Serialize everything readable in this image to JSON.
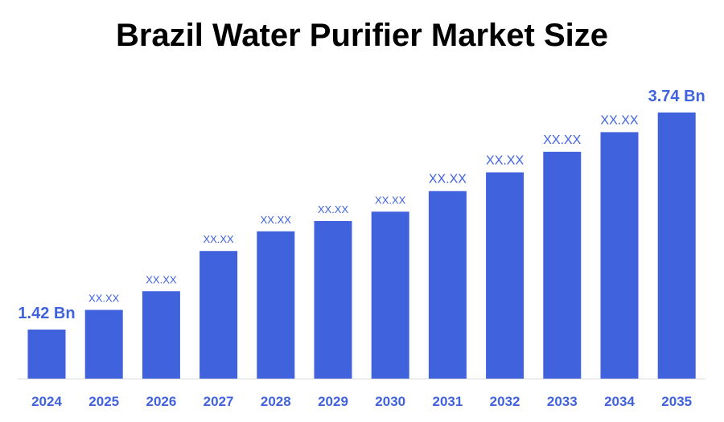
{
  "chart_data": {
    "type": "bar",
    "title": "Brazil Water Purifier Market Size",
    "xlabel": "",
    "ylabel": "",
    "categories": [
      "2024",
      "2025",
      "2026",
      "2027",
      "2028",
      "2029",
      "2030",
      "2031",
      "2032",
      "2033",
      "2034",
      "2035"
    ],
    "values": [
      1.42,
      1.63,
      1.83,
      2.26,
      2.47,
      2.58,
      2.68,
      2.9,
      3.1,
      3.32,
      3.53,
      3.74
    ],
    "data_labels": [
      "1.42 Bn",
      "XX.XX",
      "XX.XX",
      "XX.XX",
      "XX.XX",
      "XX.XX",
      "XX.XX",
      "XX.XX",
      "XX.XX",
      "XX.XX",
      "XX.XX",
      "3.74 Bn"
    ],
    "ylim": [
      0.9,
      3.9
    ],
    "grid": false,
    "bar_color": "#4063dd"
  }
}
